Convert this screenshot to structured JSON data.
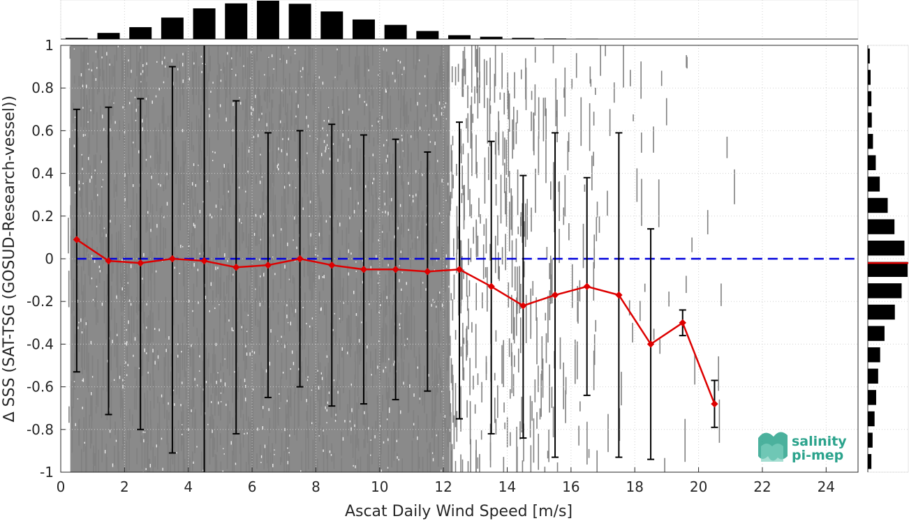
{
  "chart_data": {
    "type": "scatter",
    "xlabel": "Ascat Daily Wind Speed [m/s]",
    "ylabel": "∆ SSS (SAT-TSG (GOSUD-Research-vessel))",
    "xlim": [
      0,
      25
    ],
    "ylim": [
      -1,
      1
    ],
    "xticks": [
      0,
      2,
      4,
      6,
      8,
      10,
      12,
      14,
      16,
      18,
      20,
      22,
      24
    ],
    "yticks": [
      -1,
      -0.8,
      -0.6,
      -0.4,
      -0.2,
      0,
      0.2,
      0.4,
      0.6,
      0.8,
      1
    ],
    "grid": true,
    "scatter_color": "#808080",
    "series": [
      {
        "color": "#dd0000",
        "x": [
          0.5,
          1.5,
          2.5,
          3.5,
          4.5,
          5.5,
          6.5,
          7.5,
          8.5,
          9.5,
          10.5,
          11.5,
          12.5,
          13.5,
          14.5,
          15.5,
          16.5,
          17.5,
          18.5,
          19.5,
          20.5
        ],
        "y": [
          0.09,
          -0.01,
          -0.02,
          0.0,
          -0.01,
          -0.04,
          -0.03,
          0.0,
          -0.03,
          -0.05,
          -0.05,
          -0.06,
          -0.05,
          -0.13,
          -0.22,
          -0.17,
          -0.13,
          -0.17,
          -0.4,
          -0.3,
          -0.68
        ],
        "err_low": [
          -0.53,
          -0.73,
          -0.8,
          -0.91,
          -1.0,
          -0.82,
          -0.65,
          -0.6,
          -0.69,
          -0.68,
          -0.66,
          -0.62,
          -0.75,
          -0.82,
          -0.84,
          -0.93,
          -0.64,
          -0.93,
          -0.94,
          -0.36,
          -0.79
        ],
        "err_high": [
          0.7,
          0.71,
          0.75,
          0.9,
          1.0,
          0.74,
          0.59,
          0.6,
          0.63,
          0.58,
          0.56,
          0.5,
          0.64,
          0.55,
          0.39,
          0.59,
          0.38,
          0.59,
          0.14,
          -0.24,
          -0.57
        ]
      }
    ],
    "reference_line": {
      "y": 0,
      "color": "#0000dd",
      "style": "dashed"
    },
    "top_histogram": {
      "bins_center": [
        0.5,
        1.5,
        2.5,
        3.5,
        4.5,
        5.5,
        6.5,
        7.5,
        8.5,
        9.5,
        10.5,
        11.5,
        12.5,
        13.5,
        14.5,
        15.5,
        16.5
      ],
      "values": [
        0.03,
        0.16,
        0.31,
        0.56,
        0.8,
        0.93,
        1.0,
        0.92,
        0.72,
        0.51,
        0.37,
        0.21,
        0.1,
        0.06,
        0.03,
        0.015,
        0.01
      ]
    },
    "right_histogram": {
      "bins_center": [
        0.95,
        0.85,
        0.75,
        0.65,
        0.55,
        0.45,
        0.35,
        0.25,
        0.15,
        0.05,
        -0.05,
        -0.15,
        -0.25,
        -0.35,
        -0.45,
        -0.55,
        -0.65,
        -0.75,
        -0.85,
        -0.95
      ],
      "values": [
        0.05,
        0.07,
        0.09,
        0.1,
        0.13,
        0.2,
        0.3,
        0.5,
        0.67,
        0.92,
        1.0,
        0.85,
        0.68,
        0.42,
        0.31,
        0.26,
        0.21,
        0.17,
        0.12,
        0.09
      ],
      "median": -0.02,
      "median_color": "#dd0000"
    }
  },
  "logo": {
    "line1": "salinity",
    "line2": "pi-mep",
    "color": "#2ba38c"
  }
}
